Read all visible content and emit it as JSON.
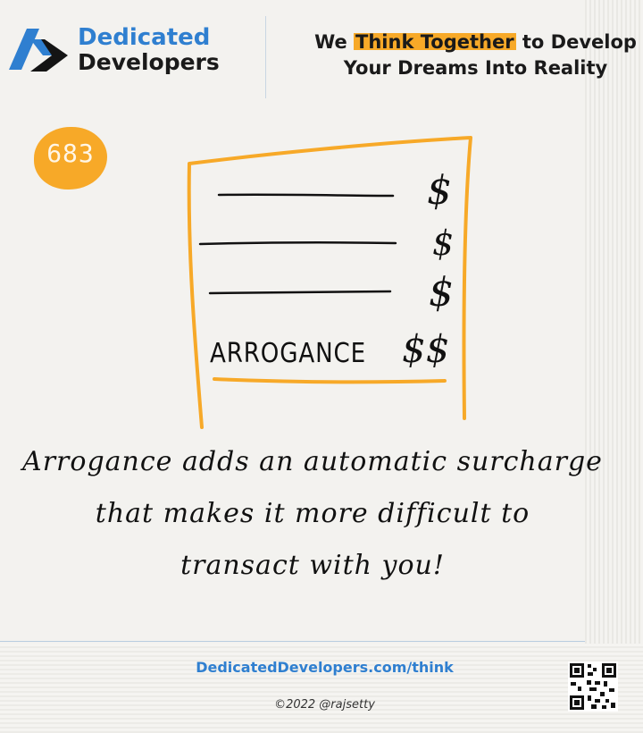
{
  "brand": {
    "name_line1": "Dedicated",
    "name_line2": "Developers",
    "logo_icon": "dedicated-developers-logo-icon",
    "accent_color": "#2f7fd0"
  },
  "tagline": {
    "prefix": "We ",
    "highlight": "Think Together",
    "suffix": " to Develop",
    "line2": "Your Dreams Into Reality",
    "highlight_color": "#f7a928"
  },
  "card": {
    "number": "683",
    "badge_color": "#f7a928"
  },
  "sketch": {
    "rows": [
      "$",
      "$",
      "$"
    ],
    "total_label": "ARROGANCE",
    "total_value": "$$"
  },
  "message": {
    "line1": "Arrogance adds an automatic surcharge",
    "line2": "that makes it more difficult to",
    "line3": "transact with you!"
  },
  "footer": {
    "url": "DedicatedDevelopers.com/think",
    "copyright": "©2022 @rajsetty",
    "qr_icon": "qr-code-icon"
  }
}
